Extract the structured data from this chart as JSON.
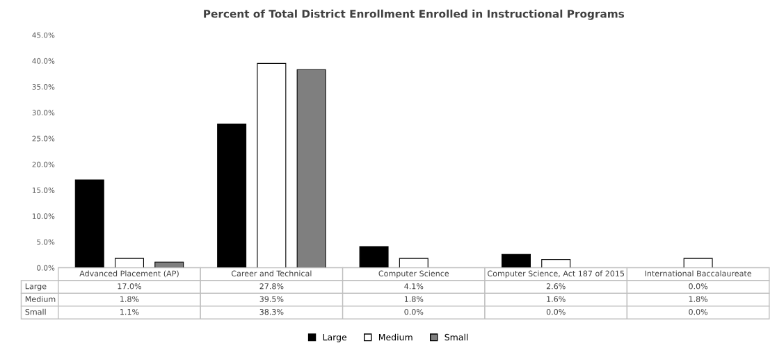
{
  "chart_data": {
    "type": "bar",
    "title": "Percent of Total District Enrollment Enrolled in Instructional Programs",
    "categories": [
      "Advanced Placement (AP)",
      "Career and Technical",
      "Computer Science",
      "Computer Science, Act 187 of 2015",
      "International Baccalaureate"
    ],
    "series": [
      {
        "name": "Large",
        "color": "#000000",
        "values": [
          17.0,
          27.8,
          4.1,
          2.6,
          0.0
        ],
        "value_labels": [
          "17.0%",
          "27.8%",
          "4.1%",
          "2.6%",
          "0.0%"
        ]
      },
      {
        "name": "Medium",
        "color": "#ffffff",
        "values": [
          1.8,
          39.5,
          1.8,
          1.6,
          1.8
        ],
        "value_labels": [
          "1.8%",
          "39.5%",
          "1.8%",
          "1.6%",
          "1.8%"
        ]
      },
      {
        "name": "Small",
        "color": "#7f7f7f",
        "values": [
          1.1,
          38.3,
          0.0,
          0.0,
          0.0
        ],
        "value_labels": [
          "1.1%",
          "38.3%",
          "0.0%",
          "0.0%",
          "0.0%"
        ]
      }
    ],
    "ylim": [
      0,
      45
    ],
    "yticks": [
      {
        "value": 0,
        "label": "0.0%"
      },
      {
        "value": 5,
        "label": "5.0%"
      },
      {
        "value": 10,
        "label": "10.0%"
      },
      {
        "value": 15,
        "label": "15.0%"
      },
      {
        "value": 20,
        "label": "20.0%"
      },
      {
        "value": 25,
        "label": "25.0%"
      },
      {
        "value": 30,
        "label": "30.0%"
      },
      {
        "value": 35,
        "label": "35.0%"
      },
      {
        "value": 40,
        "label": "40.0%"
      },
      {
        "value": 45,
        "label": "45.0%"
      }
    ],
    "grid": false,
    "legend": "bottom"
  }
}
